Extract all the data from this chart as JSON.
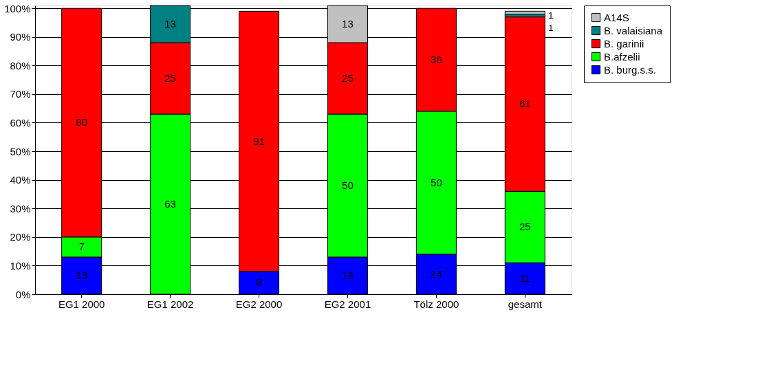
{
  "chart_data": {
    "type": "bar",
    "stacked": true,
    "data_labels": true,
    "grid": "y",
    "legend": "right",
    "categories": [
      "EG1 2000",
      "EG1 2002",
      "EG2 2000",
      "EG2 2001",
      "Tölz 2000",
      "gesamt"
    ],
    "ylim": [
      0,
      101
    ],
    "yticks": [
      {
        "value": 0,
        "label": "0%"
      },
      {
        "value": 10,
        "label": "10%"
      },
      {
        "value": 20,
        "label": "20%"
      },
      {
        "value": 30,
        "label": "30%"
      },
      {
        "value": 40,
        "label": "40%"
      },
      {
        "value": 50,
        "label": "50%"
      },
      {
        "value": 60,
        "label": "60%"
      },
      {
        "value": 70,
        "label": "70%"
      },
      {
        "value": 80,
        "label": "80%"
      },
      {
        "value": 90,
        "label": "90%"
      },
      {
        "value": 100,
        "label": "100%"
      }
    ],
    "series": [
      {
        "name": "B. burg.s.s.",
        "color": "#0000ff",
        "values": [
          13,
          null,
          8,
          13,
          14,
          11
        ]
      },
      {
        "name": "B.afzelii",
        "color": "#00ff00",
        "values": [
          7,
          63,
          null,
          50,
          50,
          25
        ]
      },
      {
        "name": "B. garinii",
        "color": "#ff0000",
        "values": [
          80,
          25,
          91,
          25,
          36,
          61
        ]
      },
      {
        "name": "B. valaisiana",
        "color": "#008080",
        "values": [
          null,
          13,
          null,
          null,
          null,
          1
        ]
      },
      {
        "name": "A14S",
        "color": "#c0c0c0",
        "values": [
          null,
          null,
          null,
          13,
          null,
          1
        ]
      }
    ]
  }
}
